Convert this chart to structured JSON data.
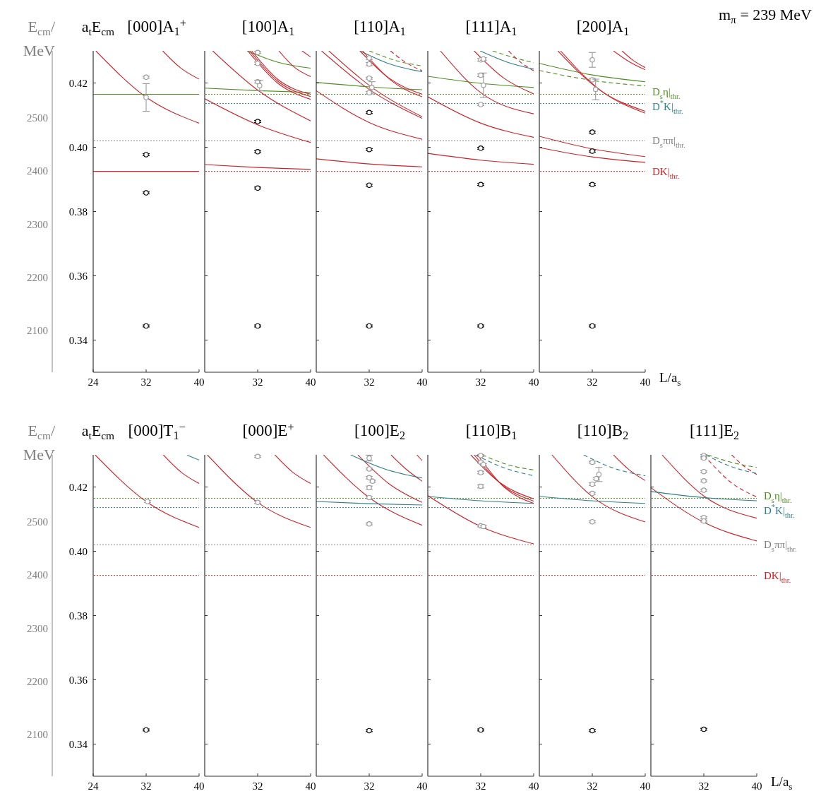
{
  "chart_data": [
    {
      "type": "scatter",
      "title": "[000]A$_{1}$$^{+}$",
      "ylabel": "a$_{t}$E$_{cm}$",
      "y2label": "E$_{cm}$/ MeV",
      "xlim": [
        24,
        40
      ],
      "xticks": [
        24,
        32,
        40
      ],
      "ylim": [
        0.33,
        0.43
      ],
      "yticks": [
        0.34,
        0.36,
        0.38,
        {
          "value": 0.4,
          "label": "0.40"
        },
        0.42
      ],
      "y2lim": [
        2021,
        2627
      ],
      "y2ticks": [
        2100,
        2200,
        2300,
        2400,
        2500
      ],
      "ref_lines": [
        {
          "axis": "y",
          "value": 0.402,
          "color": "#808080",
          "line_style": "dotted"
        }
      ],
      "series": [
        {
          "type": "line",
          "color": "#cc2229",
          "x": [
            24.4,
            32,
            40
          ],
          "values": [
            0.43,
            0.4156,
            0.4075
          ]
        },
        {
          "type": "line",
          "color": "#cc2229",
          "x": [
            34.5,
            37.2,
            40
          ],
          "values": [
            0.43,
            0.4247,
            0.4212
          ]
        },
        {
          "type": "line",
          "color": "#4d8c1f",
          "x": [
            24,
            40
          ],
          "values": [
            0.4165,
            0.4165
          ]
        },
        {
          "type": "line",
          "color": "#cc2229",
          "x": [
            24,
            40
          ],
          "values": [
            0.3925,
            0.3925
          ]
        },
        {
          "type": "scatter",
          "color": "#999999",
          "marker": "circle",
          "x": [
            32,
            32
          ],
          "values": [
            0.4218,
            0.4155
          ],
          "errors": [
            0.0003,
            0.0043
          ]
        },
        {
          "type": "scatter",
          "color": "#000000",
          "marker": "circle",
          "x": [
            32,
            32,
            32
          ],
          "values": [
            0.3977,
            0.3858,
            0.3444
          ],
          "errors": [
            0.0003,
            0.0003,
            0.0003
          ]
        }
      ]
    },
    {
      "type": "scatter",
      "title": "[100]A$_{1}$",
      "xlim": [
        24,
        40
      ],
      "xticks": [
        32,
        40
      ],
      "ylim": [
        0.33,
        0.43
      ],
      "yticks": [
        {
          "value": 0.34,
          "label": null
        },
        {
          "value": 0.36,
          "label": null
        },
        {
          "value": 0.38,
          "label": null
        },
        {
          "value": 0.4,
          "label": null
        },
        {
          "value": 0.42,
          "label": null
        }
      ],
      "tick_labels": "x",
      "ref_lines": [
        {
          "axis": "y",
          "value": 0.4165,
          "color": "#4d8c1f",
          "line_style": "dotted"
        },
        {
          "axis": "y",
          "value": 0.4136,
          "color": "#2e7f86",
          "line_style": "dotted"
        },
        {
          "axis": "y",
          "value": 0.402,
          "color": "#808080",
          "line_style": "dotted"
        },
        {
          "axis": "y",
          "value": 0.3925,
          "color": "#cc2229",
          "line_style": "dotted"
        }
      ],
      "series": [
        {
          "type": "line",
          "color": "#cc2229",
          "x": [
            25.2,
            32,
            40
          ],
          "values": [
            0.43,
            0.4178,
            0.4082
          ]
        },
        {
          "type": "line",
          "color": "#cc2229",
          "x": [
            24,
            32,
            40
          ],
          "values": [
            0.4151,
            0.407,
            0.4015
          ]
        },
        {
          "type": "line",
          "color": "#cc2229",
          "x": [
            24,
            32,
            40
          ],
          "values": [
            0.3946,
            0.3937,
            0.3931
          ]
        },
        {
          "type": "line",
          "color": "#4d8c1f",
          "x": [
            24,
            32,
            40
          ],
          "values": [
            0.4184,
            0.4176,
            0.4171
          ]
        },
        {
          "type": "line",
          "color": "#4d8c1f",
          "x": [
            30.4,
            35,
            40
          ],
          "values": [
            0.43,
            0.4265,
            0.4246
          ]
        },
        {
          "type": "line",
          "color": "#cc2229",
          "x": [
            30.5,
            35,
            40
          ],
          "values": [
            0.43,
            0.42,
            0.4149
          ]
        },
        {
          "type": "line",
          "color": "#cc2229",
          "x": [
            30.8,
            35,
            40
          ],
          "values": [
            0.43,
            0.4206,
            0.4158
          ]
        },
        {
          "type": "line",
          "color": "#cc2229",
          "x": [
            31.1,
            35,
            40
          ],
          "values": [
            0.43,
            0.4212,
            0.4165
          ]
        },
        {
          "type": "line",
          "color": "#cc2229",
          "x": [
            35.2,
            37.6,
            40
          ],
          "values": [
            0.43,
            0.4248,
            0.422
          ]
        },
        {
          "type": "line",
          "color": "#cc2229",
          "x": [
            38.7,
            40
          ],
          "values": [
            0.43,
            0.4281
          ]
        },
        {
          "type": "scatter",
          "color": "#999999",
          "marker": "circle",
          "x": [
            32,
            32,
            32,
            32.3
          ],
          "values": [
            0.4295,
            0.4261,
            0.4204,
            0.4192
          ],
          "errors": [
            0.0003,
            0.0004,
            0.0004,
            0.0016
          ]
        },
        {
          "type": "scatter",
          "color": "#000000",
          "marker": "circle",
          "x": [
            32,
            32,
            32,
            32
          ],
          "values": [
            0.408,
            0.3986,
            0.3873,
            0.3444
          ],
          "errors": [
            0.0003,
            0.0003,
            0.0003,
            0.0003
          ]
        }
      ]
    },
    {
      "type": "scatter",
      "title": "[110]A$_{1}$",
      "xlim": [
        24,
        40
      ],
      "xticks": [
        32,
        40
      ],
      "ylim": [
        0.33,
        0.43
      ],
      "yticks": [
        {
          "value": 0.34,
          "label": null
        },
        {
          "value": 0.36,
          "label": null
        },
        {
          "value": 0.38,
          "label": null
        },
        {
          "value": 0.4,
          "label": null
        },
        {
          "value": 0.42,
          "label": null
        }
      ],
      "tick_labels": "x",
      "ref_lines": [
        {
          "axis": "y",
          "value": 0.4165,
          "color": "#4d8c1f",
          "line_style": "dotted"
        },
        {
          "axis": "y",
          "value": 0.4136,
          "color": "#2e7f86",
          "line_style": "dotted"
        },
        {
          "axis": "y",
          "value": 0.402,
          "color": "#808080",
          "line_style": "dotted"
        },
        {
          "axis": "y",
          "value": 0.3925,
          "color": "#cc2229",
          "line_style": "dotted"
        }
      ],
      "series": [
        {
          "type": "line",
          "color": "#cc2229",
          "x": [
            24.8,
            32,
            40
          ],
          "values": [
            0.43,
            0.418,
            0.409
          ]
        },
        {
          "type": "line",
          "color": "#cc2229",
          "x": [
            25.9,
            32.5,
            40
          ],
          "values": [
            0.43,
            0.4185,
            0.4095
          ]
        },
        {
          "type": "line",
          "color": "#cc2229",
          "x": [
            24,
            32,
            40
          ],
          "values": [
            0.4176,
            0.4077,
            0.4025
          ]
        },
        {
          "type": "line",
          "color": "#cc2229",
          "x": [
            24,
            32,
            40
          ],
          "values": [
            0.3964,
            0.3948,
            0.3939
          ]
        },
        {
          "type": "line",
          "color": "#4d8c1f",
          "x": [
            24,
            32,
            40
          ],
          "values": [
            0.4202,
            0.4188,
            0.4179
          ]
        },
        {
          "type": "line",
          "color": "#2e7f86",
          "x": [
            30.6,
            35,
            40
          ],
          "values": [
            0.43,
            0.426,
            0.4235
          ]
        },
        {
          "type": "line",
          "color": "#cc2229",
          "x": [
            30.6,
            35,
            40
          ],
          "values": [
            0.43,
            0.4215,
            0.4165
          ]
        },
        {
          "type": "line",
          "color": "#cc2229",
          "x": [
            31,
            35.3,
            40
          ],
          "values": [
            0.43,
            0.4208,
            0.4157
          ]
        },
        {
          "type": "line",
          "color": "#4d8c1f",
          "line_style": "dashed",
          "x": [
            32,
            36,
            40
          ],
          "values": [
            0.43,
            0.427,
            0.4253
          ]
        },
        {
          "type": "line",
          "color": "#cc2229",
          "line_style": "dashed",
          "x": [
            35.2,
            37.6,
            40
          ],
          "values": [
            0.43,
            0.4263,
            0.4238
          ]
        },
        {
          "type": "scatter",
          "color": "#999999",
          "marker": "circle",
          "x": [
            32,
            32,
            32,
            32.4,
            32
          ],
          "values": [
            0.4278,
            0.4259,
            0.4215,
            0.4186,
            0.417
          ],
          "errors": [
            0.0005,
            0.0005,
            0.0003,
            0.0018,
            0.0004
          ]
        },
        {
          "type": "scatter",
          "color": "#000000",
          "marker": "circle",
          "x": [
            32,
            32,
            32,
            32
          ],
          "values": [
            0.4108,
            0.3993,
            0.3882,
            0.3444
          ],
          "errors": [
            0.0003,
            0.0003,
            0.0003,
            0.0003
          ]
        }
      ]
    },
    {
      "type": "scatter",
      "title": "[111]A$_{1}$",
      "xlim": [
        24,
        40
      ],
      "xticks": [
        32,
        40
      ],
      "ylim": [
        0.33,
        0.43
      ],
      "yticks": [
        {
          "value": 0.34,
          "label": null
        },
        {
          "value": 0.36,
          "label": null
        },
        {
          "value": 0.38,
          "label": null
        },
        {
          "value": 0.4,
          "label": null
        },
        {
          "value": 0.42,
          "label": null
        }
      ],
      "tick_labels": "x",
      "ref_lines": [
        {
          "axis": "y",
          "value": 0.4165,
          "color": "#4d8c1f",
          "line_style": "dotted"
        },
        {
          "axis": "y",
          "value": 0.4136,
          "color": "#2e7f86",
          "line_style": "dotted"
        },
        {
          "axis": "y",
          "value": 0.402,
          "color": "#808080",
          "line_style": "dotted"
        },
        {
          "axis": "y",
          "value": 0.3925,
          "color": "#cc2229",
          "line_style": "dotted"
        }
      ],
      "series": [
        {
          "type": "line",
          "color": "#cc2229",
          "x": [
            25.9,
            32,
            40
          ],
          "values": [
            0.43,
            0.417,
            0.4104
          ]
        },
        {
          "type": "line",
          "color": "#cc2229",
          "x": [
            24,
            32,
            40
          ],
          "values": [
            0.4157,
            0.4075,
            0.4031
          ]
        },
        {
          "type": "line",
          "color": "#cc2229",
          "x": [
            24,
            32,
            40
          ],
          "values": [
            0.3981,
            0.396,
            0.3947
          ]
        },
        {
          "type": "line",
          "color": "#4d8c1f",
          "x": [
            24,
            32,
            40
          ],
          "values": [
            0.4221,
            0.4199,
            0.4186
          ]
        },
        {
          "type": "line",
          "color": "#2e7f86",
          "x": [
            31.9,
            36,
            40
          ],
          "values": [
            0.43,
            0.4265,
            0.4243
          ]
        },
        {
          "type": "line",
          "color": "#cc2229",
          "x": [
            31,
            35.5,
            40
          ],
          "values": [
            0.43,
            0.4215,
            0.4166
          ]
        },
        {
          "type": "line",
          "color": "#4d8c1f",
          "line_style": "dashed",
          "x": [
            33.8,
            37,
            40
          ],
          "values": [
            0.43,
            0.4279,
            0.4263
          ]
        },
        {
          "type": "line",
          "color": "#cc2229",
          "line_style": "dashed",
          "x": [
            36.2,
            38,
            40
          ],
          "values": [
            0.43,
            0.4265,
            0.4238
          ]
        },
        {
          "type": "scatter",
          "color": "#999999",
          "marker": "circle",
          "x": [
            32,
            32.4,
            32,
            32.4,
            32
          ],
          "values": [
            0.4272,
            0.4275,
            0.4224,
            0.4193,
            0.4133
          ],
          "errors": [
            0.0004,
            0.0004,
            0.0004,
            0.0038,
            0.0003
          ]
        },
        {
          "type": "scatter",
          "color": "#000000",
          "marker": "circle",
          "x": [
            32,
            32,
            32
          ],
          "values": [
            0.3997,
            0.3884,
            0.3444
          ],
          "errors": [
            0.0003,
            0.0003,
            0.0003
          ]
        }
      ]
    },
    {
      "type": "scatter",
      "title": "[200]A$_{1}$",
      "xlabel": "L/a$_{s}$",
      "annotations": [
        "m$_{π}$ = 239 MeV"
      ],
      "xlim": [
        24,
        40
      ],
      "xticks": [
        32,
        40
      ],
      "ylim": [
        0.33,
        0.43
      ],
      "yticks": [
        {
          "value": 0.34,
          "label": null
        },
        {
          "value": 0.36,
          "label": null
        },
        {
          "value": 0.38,
          "label": null
        },
        {
          "value": 0.4,
          "label": null
        },
        {
          "value": 0.42,
          "label": null
        }
      ],
      "tick_labels": "x",
      "ref_lines": [
        {
          "axis": "y",
          "value": 0.4165,
          "color": "#4d8c1f",
          "line_style": "dotted",
          "label": "D$_{s}$η|$_{thr.}$"
        },
        {
          "axis": "y",
          "value": 0.4136,
          "color": "#2e7f86",
          "line_style": "dotted",
          "label": "D$^{*}$K|$_{thr.}$"
        },
        {
          "axis": "y",
          "value": 0.402,
          "color": "#808080",
          "line_style": "dotted",
          "label": "D$_{s}$ππ|$_{thr.}$"
        },
        {
          "axis": "y",
          "value": 0.3925,
          "color": "#cc2229",
          "line_style": "dotted",
          "label": "DK|$_{thr.}$"
        }
      ],
      "series": [
        {
          "type": "line",
          "color": "#4d8c1f",
          "x": [
            24,
            32,
            40
          ],
          "values": [
            0.4261,
            0.4225,
            0.4204
          ]
        },
        {
          "type": "line",
          "color": "#4d8c1f",
          "line_style": "dashed",
          "x": [
            24,
            32,
            40
          ],
          "values": [
            0.4239,
            0.4208,
            0.4191
          ]
        },
        {
          "type": "line",
          "color": "#cc2229",
          "x": [
            26.8,
            33,
            40
          ],
          "values": [
            0.43,
            0.418,
            0.4112
          ]
        },
        {
          "type": "line",
          "color": "#cc2229",
          "x": [
            27.2,
            33.3,
            40
          ],
          "values": [
            0.43,
            0.4176,
            0.4106
          ]
        },
        {
          "type": "line",
          "color": "#cc2229",
          "x": [
            24,
            32,
            40
          ],
          "values": [
            0.4034,
            0.3995,
            0.3971
          ]
        },
        {
          "type": "line",
          "color": "#cc2229",
          "x": [
            24,
            32,
            40
          ],
          "values": [
            0.3999,
            0.397,
            0.3953
          ]
        },
        {
          "type": "line",
          "color": "#cc2229",
          "x": [
            35.2,
            37.6,
            40
          ],
          "values": [
            0.43,
            0.4266,
            0.4241
          ]
        },
        {
          "type": "line",
          "color": "#cc2229",
          "x": [
            36.5,
            38.2,
            40
          ],
          "values": [
            0.43,
            0.427,
            0.4248
          ]
        },
        {
          "type": "scatter",
          "color": "#999999",
          "marker": "circle",
          "x": [
            32,
            32,
            32.5
          ],
          "values": [
            0.4272,
            0.421,
            0.418
          ],
          "errors": [
            0.0023,
            0.0004,
            0.0032
          ]
        },
        {
          "type": "scatter",
          "color": "#000000",
          "marker": "circle",
          "x": [
            32,
            32,
            32,
            32
          ],
          "values": [
            0.4047,
            0.3988,
            0.3884,
            0.3444
          ],
          "errors": [
            0.0003,
            0.0003,
            0.0003,
            0.0003
          ]
        }
      ]
    },
    {
      "type": "scatter",
      "title": "[000]T$_{1}$$^{−}$",
      "ylabel": "a$_{t}$E$_{cm}$",
      "y2label": "E$_{cm}$/ MeV",
      "xlim": [
        24,
        40
      ],
      "xticks": [
        24,
        32,
        40
      ],
      "ylim": [
        0.33,
        0.43
      ],
      "yticks": [
        0.34,
        0.36,
        0.38,
        {
          "value": 0.4,
          "label": "0.40"
        },
        0.42
      ],
      "y2lim": [
        2021,
        2627
      ],
      "y2ticks": [
        2100,
        2200,
        2300,
        2400,
        2500
      ],
      "ref_lines": [
        {
          "axis": "y",
          "value": 0.4165,
          "color": "#4d8c1f",
          "line_style": "dotted"
        },
        {
          "axis": "y",
          "value": 0.4136,
          "color": "#2e7f86",
          "line_style": "dotted"
        },
        {
          "axis": "y",
          "value": 0.402,
          "color": "#808080",
          "line_style": "dotted"
        },
        {
          "axis": "y",
          "value": 0.3925,
          "color": "#cc2229",
          "line_style": "dotted"
        }
      ],
      "series": [
        {
          "type": "line",
          "color": "#cc2229",
          "x": [
            24.3,
            32,
            40
          ],
          "values": [
            0.43,
            0.4155,
            0.4074
          ]
        },
        {
          "type": "line",
          "color": "#cc2229",
          "x": [
            34.6,
            37.3,
            40
          ],
          "values": [
            0.43,
            0.4246,
            0.4211
          ]
        },
        {
          "type": "line",
          "color": "#2e7f86",
          "x": [
            38.2,
            40
          ],
          "values": [
            0.4299,
            0.4284
          ]
        },
        {
          "type": "scatter",
          "color": "#999999",
          "marker": "circle",
          "x": [
            32.2
          ],
          "values": [
            0.4155
          ],
          "errors": [
            0.0003
          ]
        },
        {
          "type": "scatter",
          "color": "#000000",
          "marker": "circle",
          "x": [
            32
          ],
          "values": [
            0.3444
          ],
          "errors": [
            0.0003
          ]
        }
      ]
    },
    {
      "type": "scatter",
      "title": "[000]E$^{+}$",
      "xlim": [
        24,
        40
      ],
      "xticks": [
        32,
        40
      ],
      "ylim": [
        0.33,
        0.43
      ],
      "yticks": [
        {
          "value": 0.34,
          "label": null
        },
        {
          "value": 0.36,
          "label": null
        },
        {
          "value": 0.38,
          "label": null
        },
        {
          "value": 0.4,
          "label": null
        },
        {
          "value": 0.42,
          "label": null
        }
      ],
      "tick_labels": "x",
      "ref_lines": [
        {
          "axis": "y",
          "value": 0.4165,
          "color": "#4d8c1f",
          "line_style": "dotted"
        },
        {
          "axis": "y",
          "value": 0.4136,
          "color": "#2e7f86",
          "line_style": "dotted"
        },
        {
          "axis": "y",
          "value": 0.402,
          "color": "#808080",
          "line_style": "dotted"
        },
        {
          "axis": "y",
          "value": 0.3925,
          "color": "#cc2229",
          "line_style": "dotted"
        }
      ],
      "series": [
        {
          "type": "line",
          "color": "#cc2229",
          "x": [
            24.4,
            32,
            40
          ],
          "values": [
            0.43,
            0.4152,
            0.4074
          ]
        },
        {
          "type": "line",
          "color": "#cc2229",
          "x": [
            34.6,
            37.3,
            40
          ],
          "values": [
            0.43,
            0.4246,
            0.4211
          ]
        },
        {
          "type": "scatter",
          "color": "#999999",
          "marker": "circle",
          "x": [
            32,
            32
          ],
          "values": [
            0.4295,
            0.4152
          ],
          "errors": [
            0.0003,
            0.0003
          ]
        }
      ]
    },
    {
      "type": "scatter",
      "title": "[100]E$_{2}$",
      "xlim": [
        24,
        40
      ],
      "xticks": [
        32,
        40
      ],
      "ylim": [
        0.33,
        0.43
      ],
      "yticks": [
        {
          "value": 0.34,
          "label": null
        },
        {
          "value": 0.36,
          "label": null
        },
        {
          "value": 0.38,
          "label": null
        },
        {
          "value": 0.4,
          "label": null
        },
        {
          "value": 0.42,
          "label": null
        }
      ],
      "tick_labels": "x",
      "ref_lines": [
        {
          "axis": "y",
          "value": 0.4165,
          "color": "#4d8c1f",
          "line_style": "dotted"
        },
        {
          "axis": "y",
          "value": 0.4136,
          "color": "#2e7f86",
          "line_style": "dotted"
        },
        {
          "axis": "y",
          "value": 0.402,
          "color": "#808080",
          "line_style": "dotted"
        },
        {
          "axis": "y",
          "value": 0.3925,
          "color": "#cc2229",
          "line_style": "dotted"
        }
      ],
      "series": [
        {
          "type": "line",
          "color": "#cc2229",
          "x": [
            25.1,
            32,
            40
          ],
          "values": [
            0.43,
            0.4167,
            0.4081
          ]
        },
        {
          "type": "line",
          "color": "#cc2229",
          "x": [
            30.3,
            35,
            40
          ],
          "values": [
            0.43,
            0.421,
            0.4152
          ]
        },
        {
          "type": "line",
          "color": "#cc2229",
          "x": [
            35.3,
            37.6,
            40
          ],
          "values": [
            0.43,
            0.4255,
            0.4218
          ]
        },
        {
          "type": "line",
          "color": "#cc2229",
          "x": [
            39.2,
            40
          ],
          "values": [
            0.43,
            0.4282
          ]
        },
        {
          "type": "line",
          "color": "#2e7f86",
          "x": [
            29.2,
            34.5,
            40
          ],
          "values": [
            0.43,
            0.4255,
            0.4228
          ]
        },
        {
          "type": "line",
          "color": "#2e7f86",
          "x": [
            24,
            32,
            40
          ],
          "values": [
            0.4155,
            0.4148,
            0.4144
          ]
        },
        {
          "type": "scatter",
          "color": "#999999",
          "marker": "circle",
          "x": [
            32,
            32,
            32,
            32.5,
            32,
            32,
            32
          ],
          "values": [
            0.429,
            0.4256,
            0.4229,
            0.4218,
            0.4198,
            0.4167,
            0.4085
          ],
          "errors": [
            0.0009,
            0.0003,
            0.0004,
            0.0003,
            0.0005,
            0.0003,
            0.0003
          ]
        },
        {
          "type": "scatter",
          "color": "#000000",
          "marker": "circle",
          "x": [
            32
          ],
          "values": [
            0.3442
          ],
          "errors": [
            0.0003
          ]
        }
      ]
    },
    {
      "type": "scatter",
      "title": "[110]B$_{1}$",
      "xlim": [
        24,
        40
      ],
      "xticks": [
        32,
        40
      ],
      "ylim": [
        0.33,
        0.43
      ],
      "yticks": [
        {
          "value": 0.34,
          "label": null
        },
        {
          "value": 0.36,
          "label": null
        },
        {
          "value": 0.38,
          "label": null
        },
        {
          "value": 0.4,
          "label": null
        },
        {
          "value": 0.42,
          "label": null
        }
      ],
      "tick_labels": "x",
      "ref_lines": [
        {
          "axis": "y",
          "value": 0.4165,
          "color": "#4d8c1f",
          "line_style": "dotted"
        },
        {
          "axis": "y",
          "value": 0.4136,
          "color": "#2e7f86",
          "line_style": "dotted"
        },
        {
          "axis": "y",
          "value": 0.402,
          "color": "#808080",
          "line_style": "dotted"
        },
        {
          "axis": "y",
          "value": 0.3925,
          "color": "#cc2229",
          "line_style": "dotted"
        }
      ],
      "series": [
        {
          "type": "line",
          "color": "#2e7f86",
          "x": [
            24,
            32,
            40
          ],
          "values": [
            0.4171,
            0.4157,
            0.4149
          ]
        },
        {
          "type": "line",
          "color": "#cc2229",
          "x": [
            24,
            32,
            40
          ],
          "values": [
            0.4173,
            0.4077,
            0.4023
          ]
        },
        {
          "type": "line",
          "color": "#cc2229",
          "x": [
            30.5,
            35,
            40
          ],
          "values": [
            0.43,
            0.4212,
            0.4163
          ]
        },
        {
          "type": "line",
          "color": "#cc2229",
          "x": [
            31,
            35.3,
            40
          ],
          "values": [
            0.43,
            0.4205,
            0.4156
          ]
        },
        {
          "type": "line",
          "color": "#cc2229",
          "x": [
            31.5,
            35.6,
            40
          ],
          "values": [
            0.43,
            0.4198,
            0.4149
          ]
        },
        {
          "type": "line",
          "color": "#4d8c1f",
          "line_style": "dashed",
          "x": [
            32.2,
            36,
            40
          ],
          "values": [
            0.43,
            0.427,
            0.4253
          ]
        },
        {
          "type": "line",
          "color": "#2e7f86",
          "line_style": "dashed",
          "x": [
            31.2,
            35.5,
            40
          ],
          "values": [
            0.43,
            0.426,
            0.4235
          ]
        },
        {
          "type": "scatter",
          "color": "#999999",
          "marker": "circle",
          "x": [
            32,
            32,
            32.4,
            32,
            32,
            32,
            32.4
          ],
          "values": [
            0.4298,
            0.4277,
            0.427,
            0.4245,
            0.4202,
            0.4079,
            0.4077
          ],
          "errors": [
            0.0003,
            0.0003,
            0.0003,
            0.0004,
            0.0005,
            0.0003,
            0.0003
          ]
        },
        {
          "type": "scatter",
          "color": "#000000",
          "marker": "circle",
          "x": [
            32
          ],
          "values": [
            0.3444
          ],
          "errors": [
            0.0003
          ]
        }
      ]
    },
    {
      "type": "scatter",
      "title": "[110]B$_{2}$",
      "xlim": [
        24,
        40
      ],
      "xticks": [
        32,
        40
      ],
      "ylim": [
        0.33,
        0.43
      ],
      "yticks": [
        {
          "value": 0.34,
          "label": null
        },
        {
          "value": 0.36,
          "label": null
        },
        {
          "value": 0.38,
          "label": null
        },
        {
          "value": 0.4,
          "label": null
        },
        {
          "value": 0.42,
          "label": null
        }
      ],
      "tick_labels": "x",
      "ref_lines": [
        {
          "axis": "y",
          "value": 0.4165,
          "color": "#4d8c1f",
          "line_style": "dotted"
        },
        {
          "axis": "y",
          "value": 0.4136,
          "color": "#2e7f86",
          "line_style": "dotted"
        },
        {
          "axis": "y",
          "value": 0.402,
          "color": "#808080",
          "line_style": "dotted"
        },
        {
          "axis": "y",
          "value": 0.3925,
          "color": "#cc2229",
          "line_style": "dotted"
        }
      ],
      "series": [
        {
          "type": "line",
          "color": "#cc2229",
          "x": [
            25.9,
            32,
            40
          ],
          "values": [
            0.43,
            0.417,
            0.4091
          ]
        },
        {
          "type": "line",
          "color": "#cc2229",
          "x": [
            35.2,
            37.6,
            40
          ],
          "values": [
            0.43,
            0.4253,
            0.422
          ]
        },
        {
          "type": "line",
          "color": "#2e7f86",
          "x": [
            24,
            32,
            40
          ],
          "values": [
            0.4171,
            0.4157,
            0.4149
          ]
        },
        {
          "type": "line",
          "color": "#2e7f86",
          "line_style": "dashed",
          "x": [
            30.7,
            35,
            40
          ],
          "values": [
            0.43,
            0.426,
            0.4235
          ]
        },
        {
          "type": "scatter",
          "color": "#999999",
          "marker": "circle",
          "x": [
            32,
            33,
            32.6,
            32,
            32,
            32
          ],
          "values": [
            0.4277,
            0.4239,
            0.4226,
            0.4209,
            0.418,
            0.4092
          ],
          "errors": [
            0.0003,
            0.0022,
            0.0003,
            0.0004,
            0.0003,
            0.0003
          ]
        },
        {
          "type": "scatter",
          "color": "#000000",
          "marker": "circle",
          "x": [
            32
          ],
          "values": [
            0.3442
          ],
          "errors": [
            0.0003
          ]
        }
      ]
    },
    {
      "type": "scatter",
      "title": "[111]E$_{2}$",
      "xlabel": "L/a$_{s}$",
      "xlim": [
        24,
        40
      ],
      "xticks": [
        32,
        40
      ],
      "ylim": [
        0.33,
        0.43
      ],
      "yticks": [
        {
          "value": 0.34,
          "label": null
        },
        {
          "value": 0.36,
          "label": null
        },
        {
          "value": 0.38,
          "label": null
        },
        {
          "value": 0.4,
          "label": null
        },
        {
          "value": 0.42,
          "label": null
        }
      ],
      "tick_labels": "x",
      "ref_lines": [
        {
          "axis": "y",
          "value": 0.4165,
          "color": "#4d8c1f",
          "line_style": "dotted",
          "label": "D$_{s}$η|$_{thr.}$"
        },
        {
          "axis": "y",
          "value": 0.4136,
          "color": "#2e7f86",
          "line_style": "dotted",
          "label": "D$^{*}$K|$_{thr.}$"
        },
        {
          "axis": "y",
          "value": 0.402,
          "color": "#808080",
          "line_style": "dotted",
          "label": "D$_{s}$ππ|$_{thr.}$"
        },
        {
          "axis": "y",
          "value": 0.3925,
          "color": "#cc2229",
          "line_style": "dotted",
          "label": "DK|$_{thr.}$"
        }
      ],
      "series": [
        {
          "type": "line",
          "color": "#cc2229",
          "x": [
            24,
            32,
            40
          ],
          "values": [
            0.4198,
            0.409,
            0.4032
          ]
        },
        {
          "type": "line",
          "color": "#cc2229",
          "x": [
            25.7,
            32,
            40
          ],
          "values": [
            0.43,
            0.4172,
            0.4103
          ]
        },
        {
          "type": "line",
          "color": "#2e7f86",
          "x": [
            24,
            32,
            40
          ],
          "values": [
            0.4186,
            0.4167,
            0.4157
          ]
        },
        {
          "type": "line",
          "color": "#cc2229",
          "line_style": "dashed",
          "x": [
            32,
            36,
            40
          ],
          "values": [
            0.43,
            0.4216,
            0.4169
          ]
        },
        {
          "type": "line",
          "color": "#cc2229",
          "line_style": "dashed",
          "x": [
            36.2,
            38,
            40
          ],
          "values": [
            0.43,
            0.4266,
            0.4239
          ]
        },
        {
          "type": "line",
          "color": "#4d8c1f",
          "line_style": "dashed",
          "x": [
            32.6,
            36.3,
            40
          ],
          "values": [
            0.43,
            0.4276,
            0.4261
          ]
        },
        {
          "type": "line",
          "color": "#2e7f86",
          "line_style": "dashed",
          "x": [
            32.3,
            36.2,
            40
          ],
          "values": [
            0.43,
            0.4263,
            0.4242
          ]
        },
        {
          "type": "scatter",
          "color": "#999999",
          "marker": "circle",
          "x": [
            32,
            32,
            32,
            32,
            32,
            32,
            32
          ],
          "values": [
            0.4298,
            0.429,
            0.4248,
            0.4219,
            0.419,
            0.4105,
            0.4094
          ],
          "errors": [
            0.0003,
            0.0003,
            0.0003,
            0.0003,
            0.0003,
            0.0003,
            0.0003
          ]
        },
        {
          "type": "scatter",
          "color": "#000000",
          "marker": "circle",
          "x": [
            32
          ],
          "values": [
            0.3446
          ],
          "errors": [
            0.0003
          ]
        }
      ]
    }
  ]
}
